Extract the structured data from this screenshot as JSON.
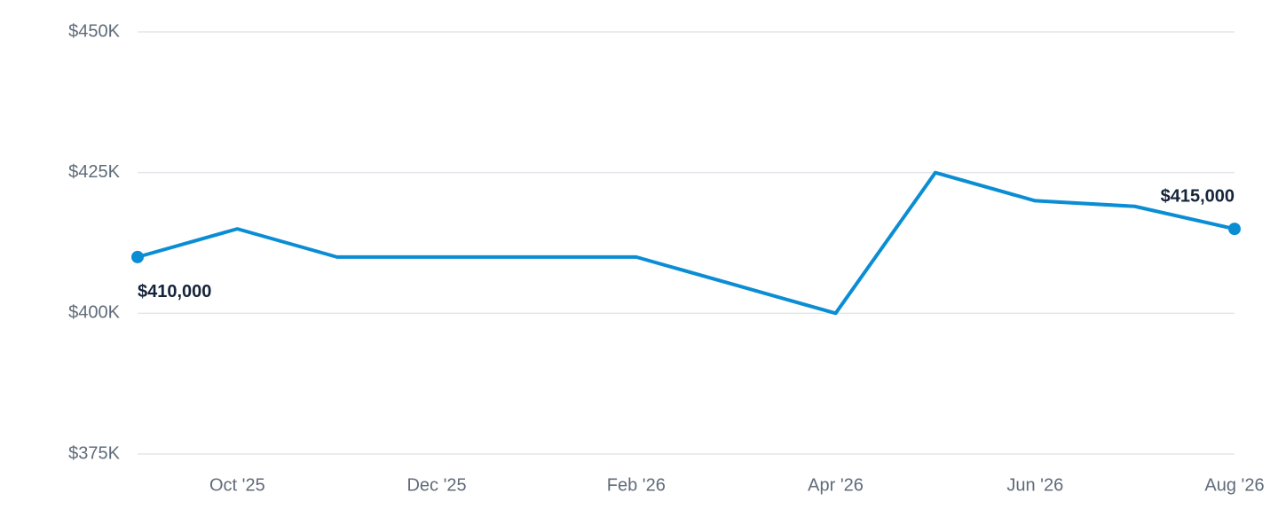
{
  "chart_data": {
    "type": "line",
    "categories": [
      null,
      "Oct '25",
      null,
      "Dec '25",
      null,
      "Feb '26",
      null,
      "Apr '26",
      null,
      "Jun '26",
      null,
      "Aug '26"
    ],
    "values": [
      410000,
      415000,
      410000,
      410000,
      410000,
      410000,
      405000,
      400000,
      425000,
      420000,
      419000,
      415000
    ],
    "value_labels": [
      "$410,000",
      null,
      null,
      null,
      null,
      null,
      null,
      null,
      null,
      null,
      null,
      "$415,000"
    ],
    "color": "#0b8dd3",
    "ylim": [
      375000,
      450000
    ],
    "yticks": [
      {
        "value": 375000,
        "label": "$375K"
      },
      {
        "value": 400000,
        "label": "$400K"
      },
      {
        "value": 425000,
        "label": "$425K"
      },
      {
        "value": 450000,
        "label": "$450K"
      }
    ],
    "grid": true
  }
}
